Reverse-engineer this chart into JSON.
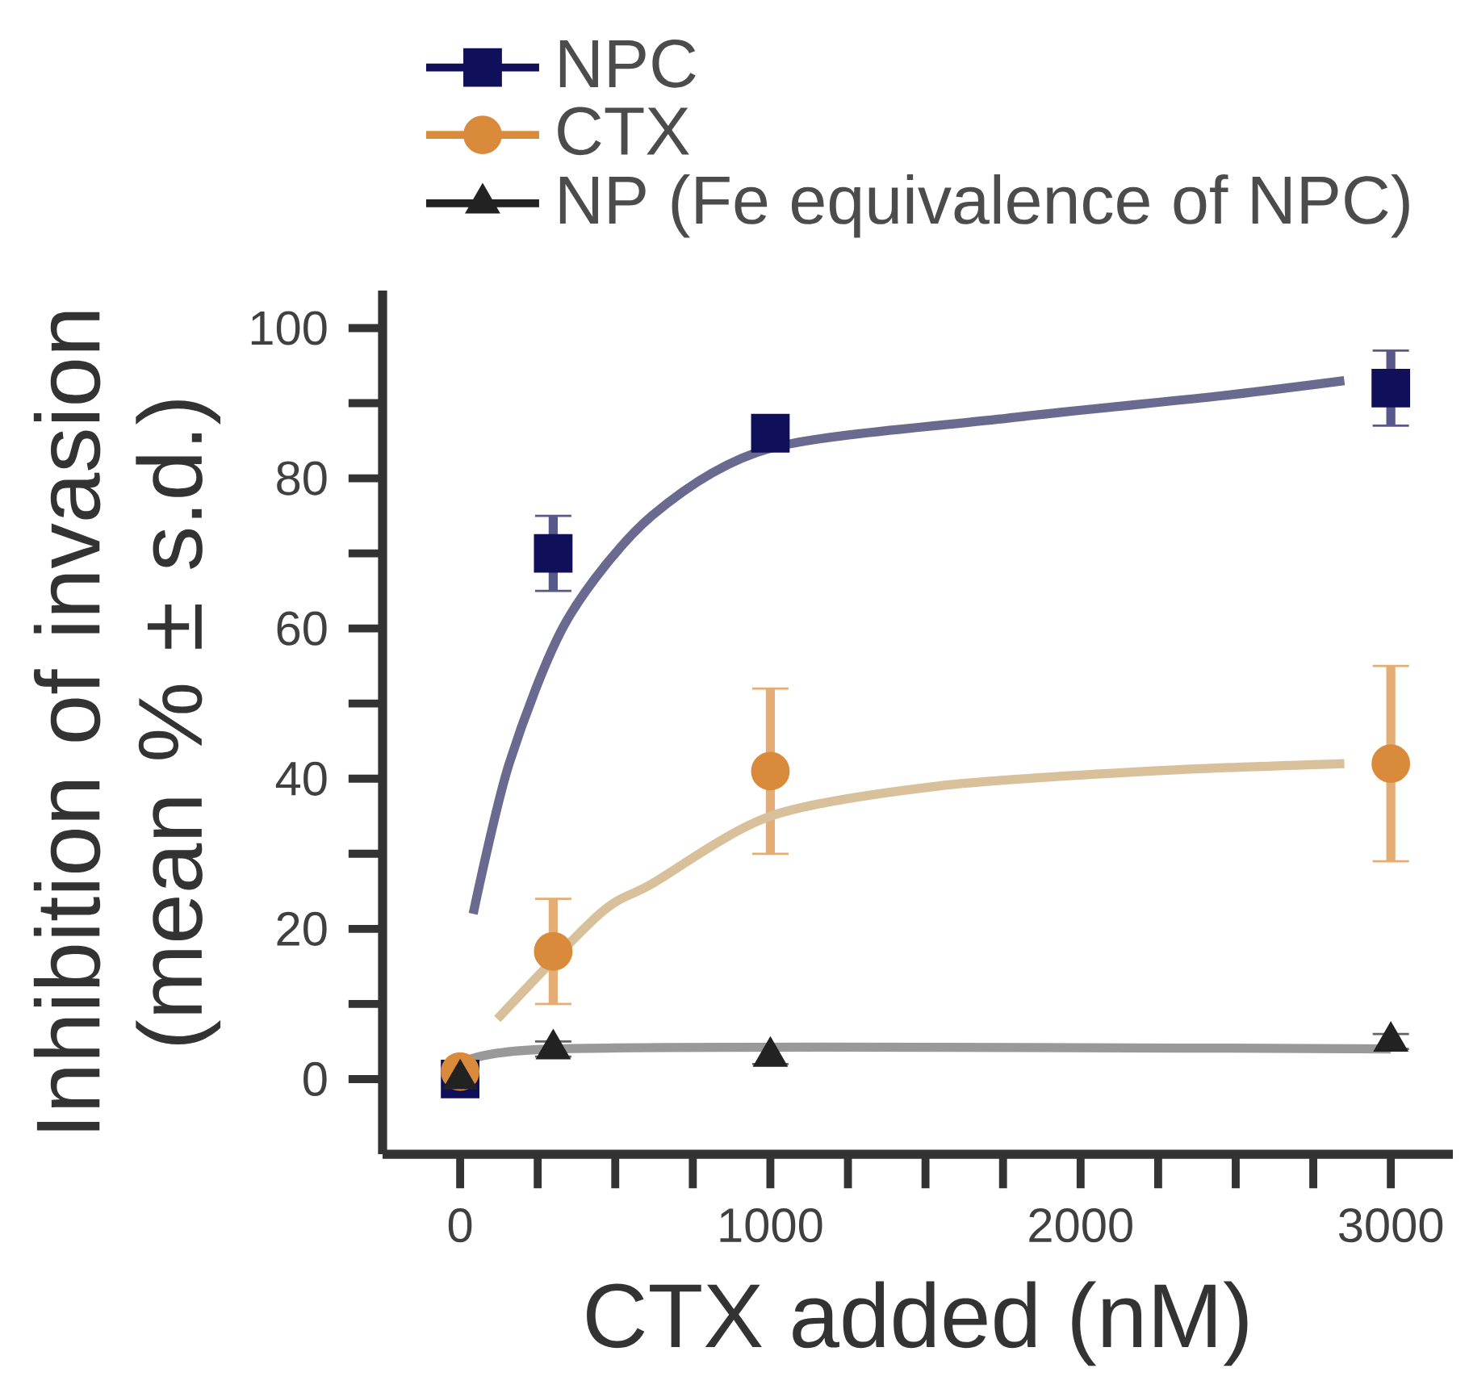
{
  "chart_data": {
    "type": "scatter",
    "xlabel": "CTX added (nM)",
    "ylabel": "Inhibition of invasion (mean % ± s.d.)",
    "xlim": [
      -250,
      3200
    ],
    "ylim": [
      -10,
      105
    ],
    "xticks": [
      0,
      1000,
      2000,
      3000
    ],
    "yticks": [
      0,
      20,
      40,
      60,
      80,
      100
    ],
    "legend": "top left",
    "series": [
      {
        "name": "NPC",
        "marker": "square",
        "color": "#10105a",
        "x": [
          0,
          300,
          1000,
          3000
        ],
        "values": [
          0,
          70,
          86,
          92
        ],
        "errors": [
          null,
          5,
          2,
          5
        ]
      },
      {
        "name": "CTX",
        "marker": "circle",
        "color": "#d98a3a",
        "x": [
          0,
          300,
          1000,
          3000
        ],
        "values": [
          1,
          17,
          41,
          42
        ],
        "errors": [
          null,
          7,
          11,
          13
        ]
      },
      {
        "name": "NP (Fe equivalence of NPC)",
        "marker": "triangle",
        "color": "#222222",
        "x": [
          0,
          300,
          1000,
          3000
        ],
        "values": [
          0,
          4,
          3,
          5
        ],
        "errors": [
          null,
          1,
          1,
          1
        ]
      },
      {
        "type": "line",
        "color": "#6a6a90",
        "x": [
          42,
          158,
          343,
          618,
          1000,
          1765,
          2456,
          2850
        ],
        "values": [
          22,
          42,
          61,
          75,
          84,
          88,
          91,
          93
        ]
      },
      {
        "type": "line",
        "color": "#d8c09a",
        "x": [
          120,
          450,
          618,
          1000,
          1537,
          2224,
          2850
        ],
        "values": [
          8,
          22,
          26,
          35,
          39,
          41,
          42
        ]
      },
      {
        "type": "line",
        "color": "#999999",
        "x": [
          0,
          300,
          3000
        ],
        "values": [
          0,
          4,
          4
        ]
      }
    ]
  }
}
